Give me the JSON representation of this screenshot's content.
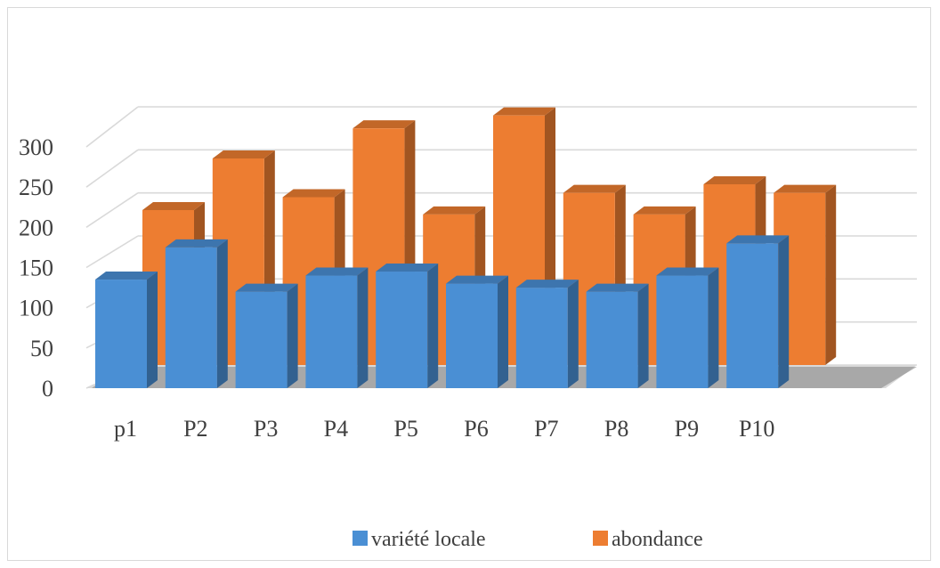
{
  "chart_data": {
    "type": "bar",
    "title": "",
    "xlabel": "",
    "ylabel": "",
    "categories": [
      "p1",
      "P2",
      "P3",
      "P4",
      "P5",
      "P6",
      "P7",
      "P8",
      "P9",
      "P10"
    ],
    "series": [
      {
        "name": "variété locale",
        "color": "#4a8fd4",
        "values": [
          135,
          175,
          120,
          140,
          145,
          130,
          125,
          120,
          140,
          180
        ]
      },
      {
        "name": "abondance",
        "color": "#ed7d31",
        "values": [
          180,
          240,
          195,
          275,
          175,
          290,
          200,
          175,
          210,
          200
        ]
      }
    ],
    "ylim": [
      0,
      300
    ],
    "y_ticks": [
      "0",
      "50",
      "100",
      "150",
      "200",
      "250",
      "300"
    ],
    "grid": true,
    "three_d": true,
    "legend_position": "bottom"
  }
}
